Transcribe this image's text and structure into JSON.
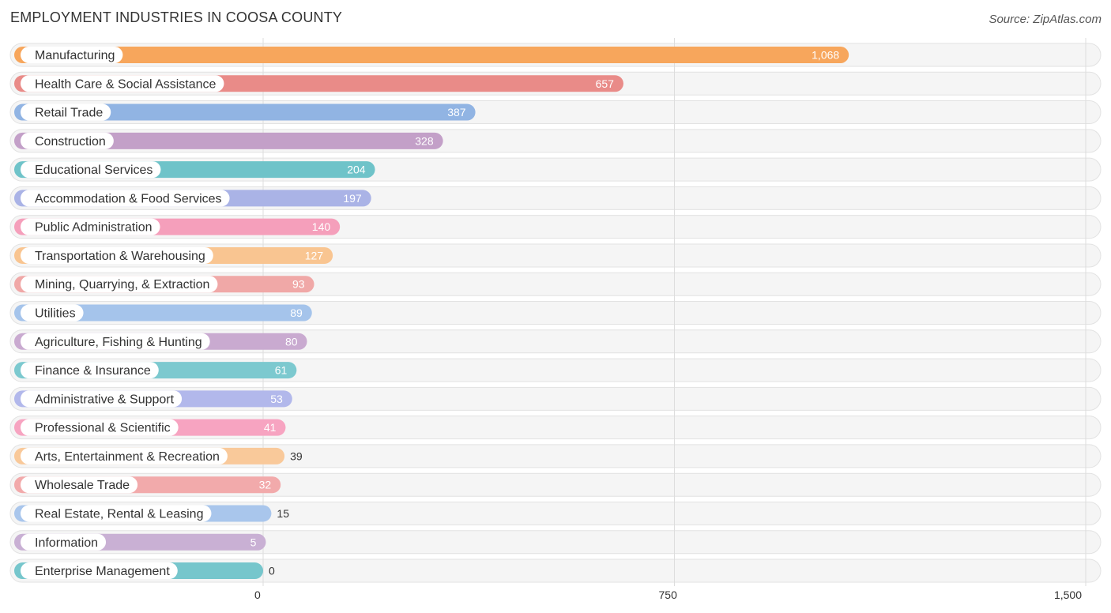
{
  "header": {
    "title": "EMPLOYMENT INDUSTRIES IN COOSA COUNTY",
    "source": "Source: ZipAtlas.com"
  },
  "chart_data": {
    "type": "bar",
    "orientation": "horizontal",
    "title": "EMPLOYMENT INDUSTRIES IN COOSA COUNTY",
    "xlabel": "",
    "ylabel": "",
    "xlim": [
      0,
      1500
    ],
    "ticks": [
      {
        "value": 0,
        "label": "0"
      },
      {
        "value": 750,
        "label": "750"
      },
      {
        "value": 1500,
        "label": "1,500"
      }
    ],
    "grid": true,
    "categories": [
      "Manufacturing",
      "Health Care & Social Assistance",
      "Retail Trade",
      "Construction",
      "Educational Services",
      "Accommodation & Food Services",
      "Public Administration",
      "Transportation & Warehousing",
      "Mining, Quarrying, & Extraction",
      "Utilities",
      "Agriculture, Fishing & Hunting",
      "Finance & Insurance",
      "Administrative & Support",
      "Professional & Scientific",
      "Arts, Entertainment & Recreation",
      "Wholesale Trade",
      "Real Estate, Rental & Leasing",
      "Information",
      "Enterprise Management"
    ],
    "values": [
      1068,
      657,
      387,
      328,
      204,
      197,
      140,
      127,
      93,
      89,
      80,
      61,
      53,
      41,
      39,
      32,
      15,
      5,
      0
    ],
    "value_labels": [
      "1,068",
      "657",
      "387",
      "328",
      "204",
      "197",
      "140",
      "127",
      "93",
      "89",
      "80",
      "61",
      "53",
      "41",
      "39",
      "32",
      "15",
      "5",
      "0"
    ],
    "colors": [
      "#f7a65c",
      "#e98b88",
      "#91b4e3",
      "#c3a0c8",
      "#6fc3c9",
      "#aab3e6",
      "#f59fbb",
      "#f9c591",
      "#f0a8a7",
      "#a5c4eb",
      "#c9aad0",
      "#7cc9cf",
      "#b2b8eb",
      "#f7a4c1",
      "#f9c99a",
      "#f2aaab",
      "#a9c6ec",
      "#c9b0d4",
      "#76c6cc"
    ]
  }
}
